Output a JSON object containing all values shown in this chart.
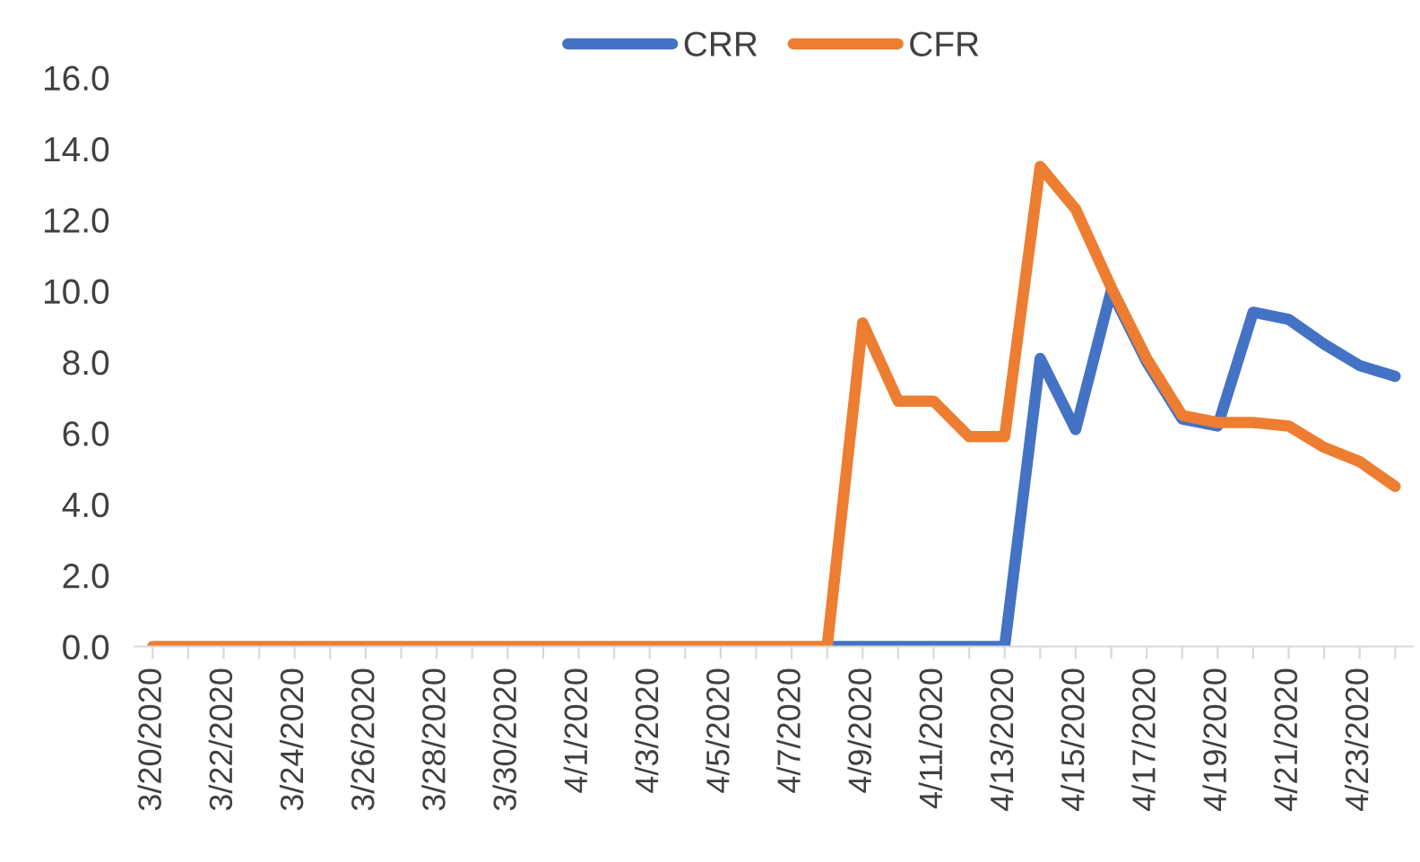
{
  "chart_data": {
    "type": "line",
    "categories": [
      "3/20/2020",
      null,
      "3/22/2020",
      null,
      "3/24/2020",
      null,
      "3/26/2020",
      null,
      "3/28/2020",
      null,
      "3/30/2020",
      null,
      "4/1/2020",
      null,
      "4/3/2020",
      null,
      "4/5/2020",
      null,
      "4/7/2020",
      null,
      "4/9/2020",
      null,
      "4/11/2020",
      null,
      "4/13/2020",
      null,
      "4/15/2020",
      null,
      "4/17/2020",
      null,
      "4/19/2020",
      null,
      "4/21/2020",
      null,
      "4/23/2020",
      null
    ],
    "series": [
      {
        "name": "CRR",
        "color": "#4472c4",
        "values": [
          null,
          null,
          null,
          null,
          null,
          null,
          null,
          null,
          null,
          null,
          null,
          null,
          null,
          null,
          null,
          null,
          null,
          null,
          null,
          0,
          0,
          0,
          0,
          0,
          0,
          8.1,
          6.1,
          10.0,
          8.0,
          6.4,
          6.2,
          9.4,
          9.2,
          8.5,
          7.9,
          7.6
        ]
      },
      {
        "name": "CFR",
        "color": "#ed7d31",
        "values": [
          0,
          0,
          0,
          0,
          0,
          0,
          0,
          0,
          0,
          0,
          0,
          0,
          0,
          0,
          0,
          0,
          0,
          0,
          0,
          0,
          9.1,
          6.9,
          6.9,
          5.9,
          5.9,
          13.5,
          12.3,
          10.1,
          8.1,
          6.5,
          6.3,
          6.3,
          6.2,
          5.6,
          5.2,
          4.5
        ]
      }
    ],
    "ylim": [
      0,
      16
    ],
    "yticks": [
      {
        "value": 0,
        "label": "0.0"
      },
      {
        "value": 2,
        "label": "2.0"
      },
      {
        "value": 4,
        "label": "4.0"
      },
      {
        "value": 6,
        "label": "6.0"
      },
      {
        "value": 8,
        "label": "8.0"
      },
      {
        "value": 10,
        "label": "10.0"
      },
      {
        "value": 12,
        "label": "12.0"
      },
      {
        "value": 14,
        "label": "14.0"
      },
      {
        "value": 16,
        "label": "16.0"
      }
    ],
    "legend": "top",
    "grid": false,
    "marker": "none",
    "line_style": "solid"
  }
}
